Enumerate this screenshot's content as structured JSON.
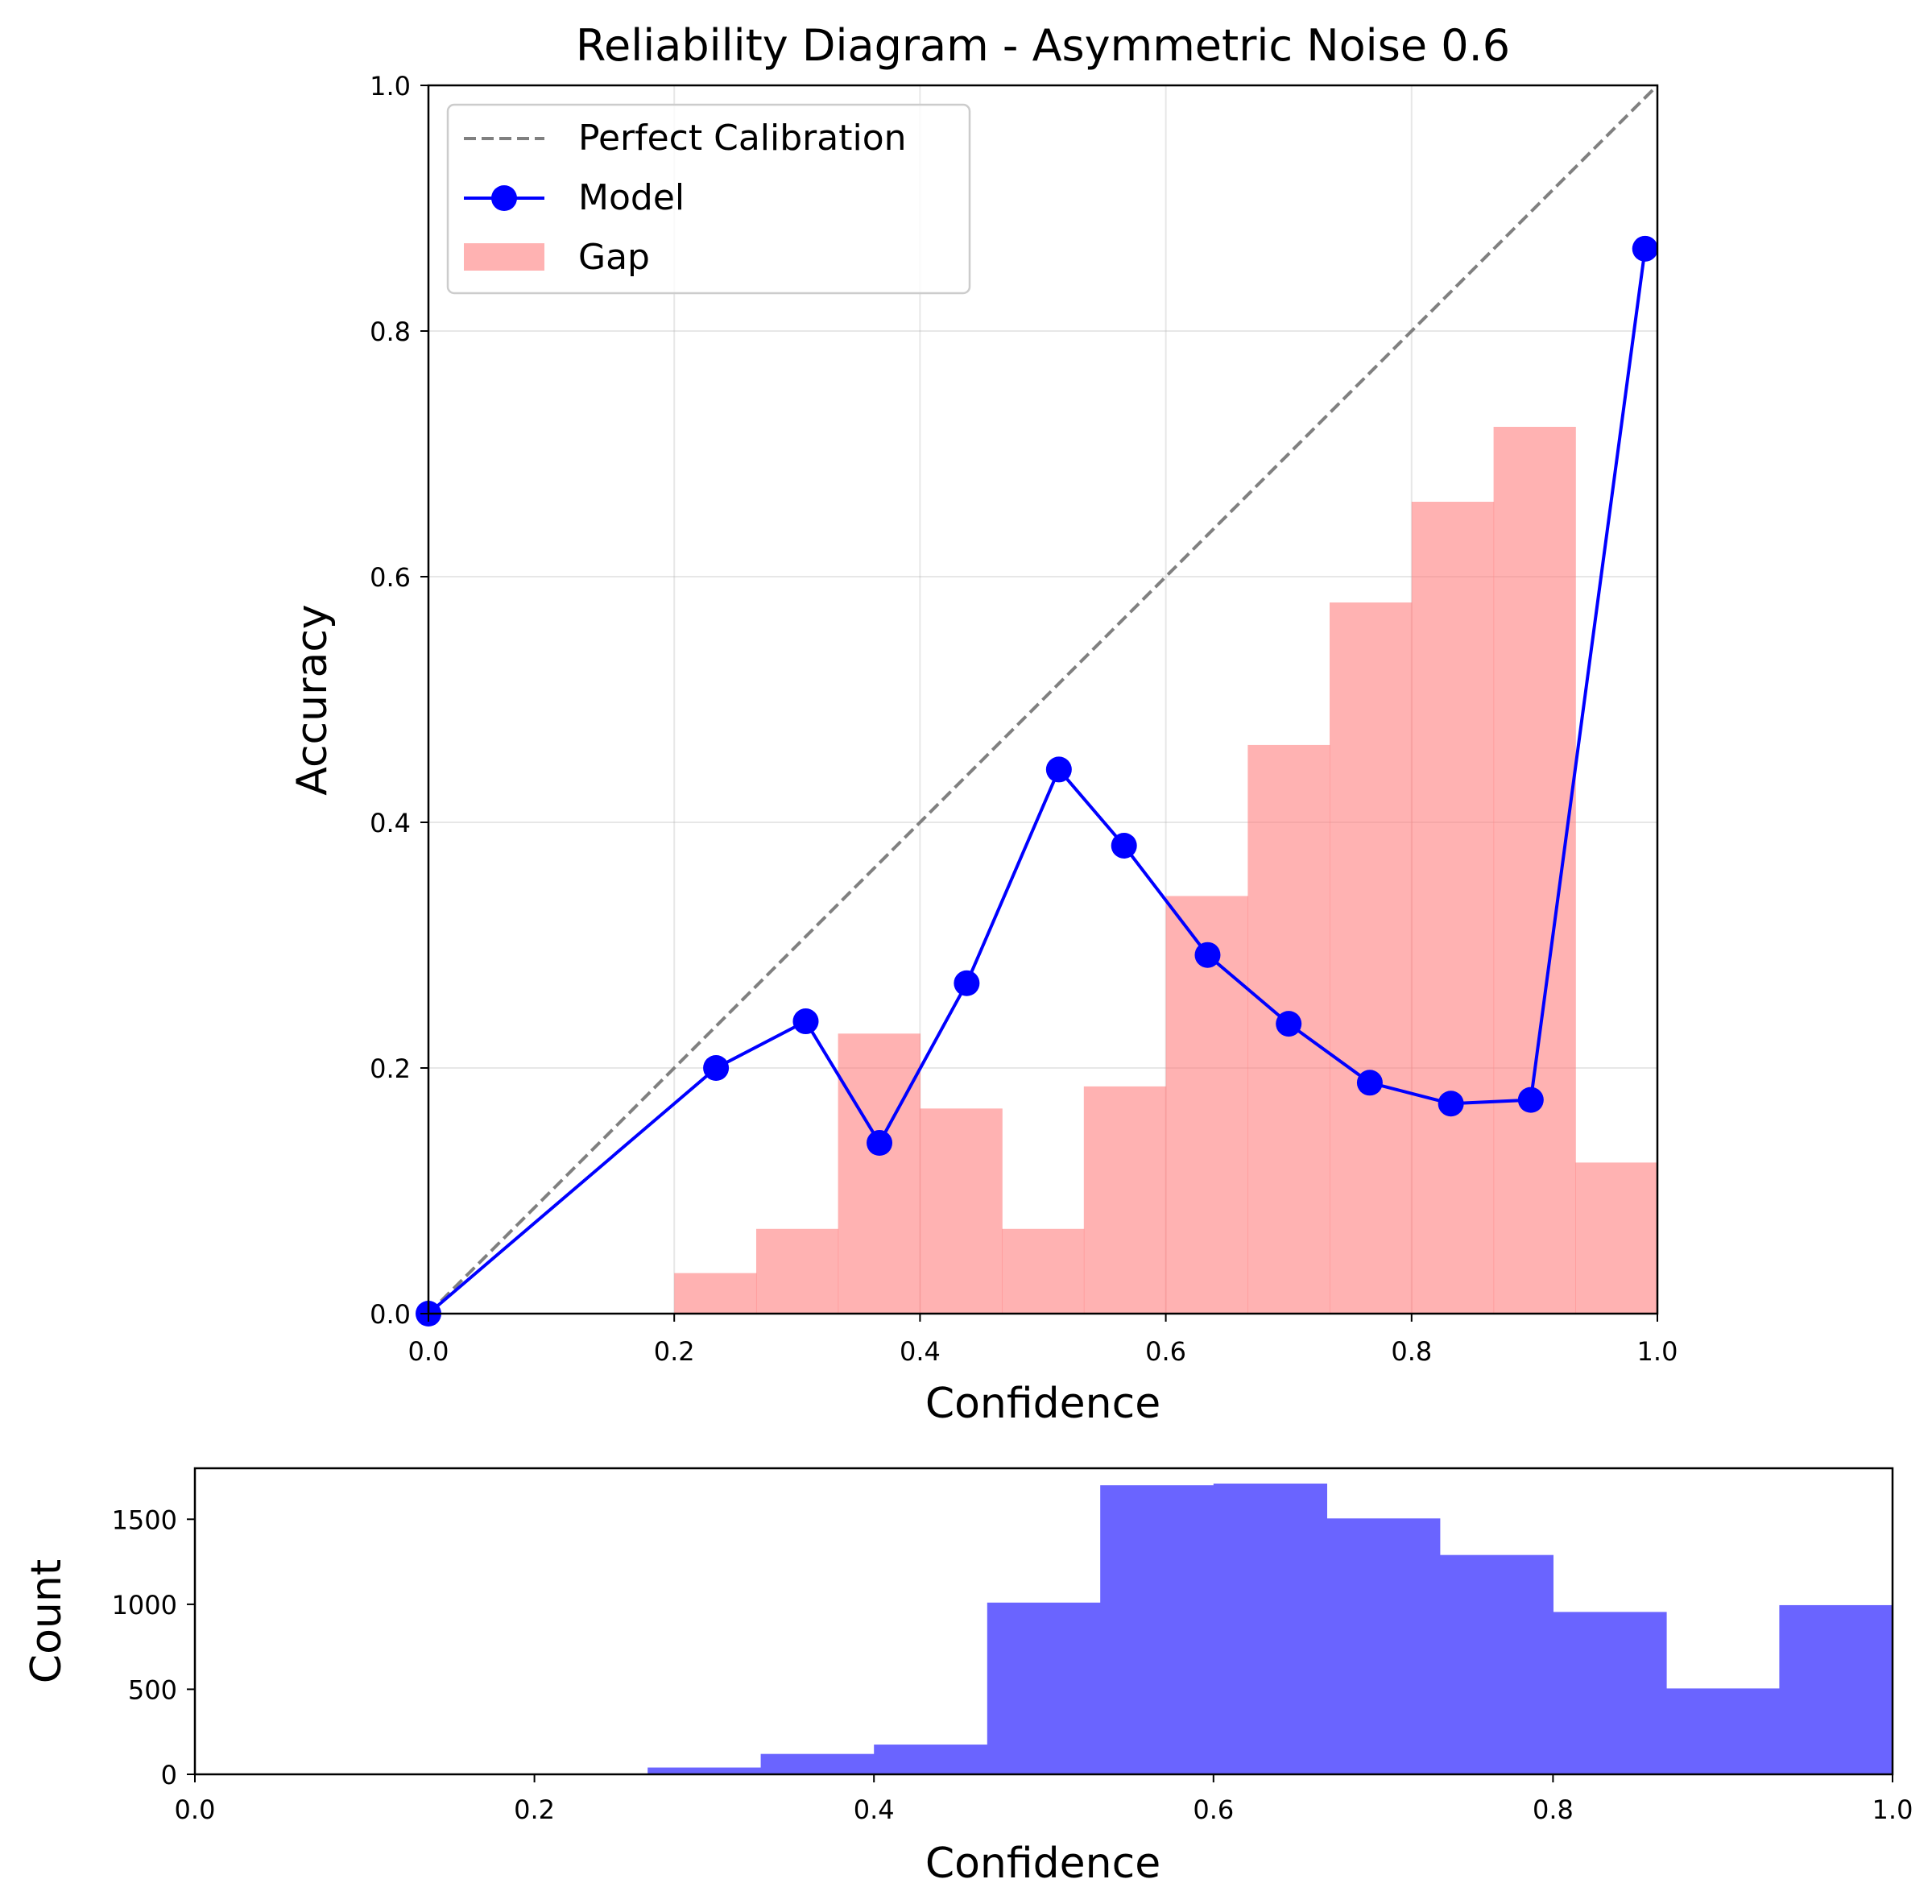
{
  "chart_data": [
    {
      "type": "line",
      "title": "Reliability Diagram - Asymmetric Noise 0.6",
      "xlabel": "Confidence",
      "ylabel": "Accuracy",
      "xlim": [
        0,
        1
      ],
      "ylim": [
        0,
        1
      ],
      "xticks": [
        "0.0",
        "0.2",
        "0.4",
        "0.6",
        "0.8",
        "1.0"
      ],
      "yticks": [
        "0.0",
        "0.2",
        "0.4",
        "0.6",
        "0.8",
        "1.0"
      ],
      "grid": true,
      "legend_position": "top-left",
      "series": [
        {
          "name": "Perfect Calibration",
          "kind": "line",
          "style": "dashed",
          "color": "#808080",
          "x": [
            0,
            1
          ],
          "y": [
            0,
            1
          ]
        },
        {
          "name": "Model",
          "kind": "line-marker",
          "color": "#0000ff",
          "x": [
            0.0,
            0.234,
            0.307,
            0.367,
            0.438,
            0.513,
            0.566,
            0.634,
            0.7,
            0.766,
            0.832,
            0.897,
            0.99
          ],
          "y": [
            0.0,
            0.2,
            0.238,
            0.139,
            0.269,
            0.443,
            0.381,
            0.292,
            0.236,
            0.188,
            0.171,
            0.174,
            0.867
          ]
        },
        {
          "name": "Gap",
          "kind": "bar",
          "color": "#ff7f7f",
          "bin_edges": [
            0.0,
            0.0667,
            0.1333,
            0.2,
            0.2667,
            0.3333,
            0.4,
            0.4667,
            0.5333,
            0.6,
            0.6667,
            0.7333,
            0.8,
            0.8667,
            0.9333,
            1.0
          ],
          "values": [
            0,
            0,
            0,
            0.033,
            0.069,
            0.228,
            0.167,
            0.069,
            0.185,
            0.34,
            0.463,
            0.579,
            0.661,
            0.722,
            0.123
          ]
        }
      ]
    },
    {
      "type": "bar",
      "title": "",
      "xlabel": "Confidence",
      "ylabel": "Count",
      "xlim": [
        0,
        1
      ],
      "ylim": [
        0,
        1800
      ],
      "xticks": [
        "0.0",
        "0.2",
        "0.4",
        "0.6",
        "0.8",
        "1.0"
      ],
      "yticks": [
        "0",
        "500",
        "1000",
        "1500"
      ],
      "grid": false,
      "color": "#6a64ff",
      "bin_edges": [
        0.0,
        0.0667,
        0.1333,
        0.2,
        0.2667,
        0.3333,
        0.4,
        0.4667,
        0.5333,
        0.6,
        0.6667,
        0.7333,
        0.8,
        0.8667,
        0.9333,
        1.0
      ],
      "values": [
        0,
        0,
        0,
        0,
        40,
        120,
        175,
        1010,
        1700,
        1710,
        1505,
        1290,
        955,
        505,
        995
      ]
    }
  ]
}
